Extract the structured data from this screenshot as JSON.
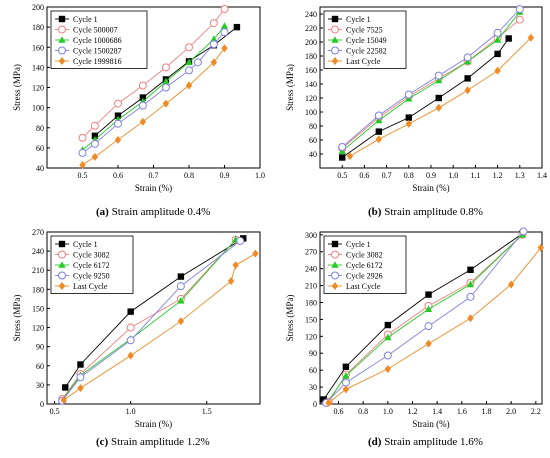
{
  "chart_data": [
    {
      "type": "line",
      "panel_label": "(a)",
      "caption": "Strain amplitude 0.4%",
      "xlabel": "Strain (%)",
      "ylabel": "Stress (MPa)",
      "xlim": [
        0.4,
        1.0
      ],
      "ylim": [
        40,
        200
      ],
      "xticks": [
        "0.5",
        "0.6",
        "0.7",
        "0.8",
        "0.9",
        "1.0"
      ],
      "yticks": [
        "40",
        "60",
        "80",
        "100",
        "120",
        "140",
        "160",
        "180",
        "200"
      ],
      "legend_position": "top-left",
      "series": [
        {
          "name": "Cycle 1",
          "color": "#000000",
          "marker": "square-filled",
          "x": [
            0.535,
            0.6,
            0.67,
            0.735,
            0.8,
            0.87,
            0.935
          ],
          "y": [
            72,
            92,
            110,
            128,
            146,
            162,
            180
          ]
        },
        {
          "name": "Cycle 500007",
          "color": "#f08080",
          "marker": "circle-open",
          "x": [
            0.5,
            0.535,
            0.6,
            0.67,
            0.735,
            0.8,
            0.87,
            0.9
          ],
          "y": [
            70,
            82,
            104,
            122,
            140,
            160,
            184,
            198
          ]
        },
        {
          "name": "Cycle 1000686",
          "color": "#22cc22",
          "marker": "triangle-filled",
          "x": [
            0.5,
            0.535,
            0.6,
            0.67,
            0.735,
            0.8,
            0.87,
            0.9
          ],
          "y": [
            58,
            68,
            88,
            106,
            126,
            145,
            168,
            181
          ]
        },
        {
          "name": "Cycle 1500287",
          "color": "#8080e0",
          "marker": "circle-open",
          "x": [
            0.5,
            0.535,
            0.6,
            0.67,
            0.735,
            0.8,
            0.825,
            0.87,
            0.9
          ],
          "y": [
            55,
            64,
            84,
            102,
            120,
            137,
            145,
            163,
            175
          ]
        },
        {
          "name": "Cycle 1999816",
          "color": "#f08a24",
          "marker": "diamond-filled",
          "x": [
            0.5,
            0.535,
            0.6,
            0.67,
            0.735,
            0.8,
            0.87,
            0.9
          ],
          "y": [
            43,
            51,
            68,
            86,
            104,
            122,
            145,
            159
          ]
        }
      ]
    },
    {
      "type": "line",
      "panel_label": "(b)",
      "caption": "Strain amplitude 0.8%",
      "xlabel": "Strain (%)",
      "ylabel": "Stress (MPa)",
      "xlim": [
        0.4,
        1.4
      ],
      "ylim": [
        20,
        250
      ],
      "xticks": [
        "0.5",
        "0.6",
        "0.7",
        "0.8",
        "0.9",
        "1.0",
        "1.1",
        "1.2",
        "1.3",
        "1.4"
      ],
      "yticks": [
        "40",
        "60",
        "80",
        "100",
        "120",
        "140",
        "160",
        "180",
        "200",
        "220",
        "240"
      ],
      "legend_position": "top-left",
      "series": [
        {
          "name": "Cycle 1",
          "color": "#000000",
          "marker": "square-filled",
          "x": [
            0.5,
            0.665,
            0.8,
            0.935,
            1.065,
            1.2,
            1.25
          ],
          "y": [
            35,
            72,
            92,
            120,
            148,
            183,
            205
          ]
        },
        {
          "name": "Cycle 7525",
          "color": "#f08080",
          "marker": "circle-open",
          "x": [
            0.5,
            0.665,
            0.8,
            0.935,
            1.065,
            1.2,
            1.3
          ],
          "y": [
            48,
            92,
            122,
            148,
            172,
            206,
            232
          ]
        },
        {
          "name": "Cycle 15049",
          "color": "#22cc22",
          "marker": "triangle-filled",
          "x": [
            0.5,
            0.665,
            0.8,
            0.935,
            1.065,
            1.2,
            1.3
          ],
          "y": [
            44,
            88,
            119,
            145,
            172,
            203,
            243
          ]
        },
        {
          "name": "Cycle 22582",
          "color": "#8080e0",
          "marker": "circle-open",
          "x": [
            0.5,
            0.665,
            0.8,
            0.935,
            1.065,
            1.2,
            1.3
          ],
          "y": [
            50,
            95,
            125,
            152,
            178,
            213,
            247
          ]
        },
        {
          "name": "Last Cycle",
          "color": "#f08a24",
          "marker": "diamond-filled",
          "x": [
            0.535,
            0.665,
            0.8,
            0.935,
            1.065,
            1.2,
            1.35
          ],
          "y": [
            37,
            61,
            83,
            106,
            131,
            159,
            206
          ]
        }
      ]
    },
    {
      "type": "line",
      "panel_label": "(c)",
      "caption": "Strain amplitude 1.2%",
      "xlabel": "Strain (%)",
      "ylabel": "Stress (MPa)",
      "xlim": [
        0.45,
        1.85
      ],
      "ylim": [
        0,
        270
      ],
      "xticks": [
        "0.5",
        "1.0",
        "1.5"
      ],
      "yticks": [
        "0",
        "30",
        "60",
        "90",
        "120",
        "150",
        "180",
        "210",
        "240",
        "270"
      ],
      "legend_position": "top-left",
      "series": [
        {
          "name": "Cycle 1",
          "color": "#000000",
          "marker": "square-filled",
          "x": [
            0.57,
            0.67,
            1.0,
            1.33,
            1.74
          ],
          "y": [
            26,
            62,
            145,
            200,
            260
          ]
        },
        {
          "name": "Cycle 3082",
          "color": "#f08080",
          "marker": "circle-open",
          "x": [
            0.55,
            0.67,
            1.0,
            1.33,
            1.69
          ],
          "y": [
            8,
            47,
            120,
            165,
            258
          ]
        },
        {
          "name": "Cycle 6172",
          "color": "#22cc22",
          "marker": "triangle-filled",
          "x": [
            0.55,
            0.67,
            1.0,
            1.33,
            1.69
          ],
          "y": [
            6,
            45,
            102,
            162,
            258
          ]
        },
        {
          "name": "Cycle 9250",
          "color": "#8080e0",
          "marker": "circle-open",
          "x": [
            0.55,
            0.67,
            1.0,
            1.33,
            1.72
          ],
          "y": [
            5,
            42,
            100,
            185,
            256
          ]
        },
        {
          "name": "Last Cycle",
          "color": "#f08a24",
          "marker": "diamond-filled",
          "x": [
            0.56,
            0.67,
            1.0,
            1.33,
            1.66,
            1.69,
            1.82
          ],
          "y": [
            6,
            25,
            76,
            130,
            193,
            218,
            236
          ]
        }
      ]
    },
    {
      "type": "line",
      "panel_label": "(d)",
      "caption": "Strain amplitude 1.6%",
      "xlabel": "Strain (%)",
      "ylabel": "Stress (MPa)",
      "xlim": [
        0.45,
        2.25
      ],
      "ylim": [
        0,
        305
      ],
      "xticks": [
        "0.6",
        "0.8",
        "1.0",
        "1.2",
        "1.4",
        "1.6",
        "1.8",
        "2.0",
        "2.2"
      ],
      "yticks": [
        "0",
        "30",
        "60",
        "90",
        "120",
        "150",
        "180",
        "210",
        "240",
        "270",
        "300"
      ],
      "legend_position": "top-left",
      "series": [
        {
          "name": "Cycle 1",
          "color": "#000000",
          "marker": "square-filled",
          "x": [
            0.48,
            0.66,
            1.0,
            1.33,
            1.67,
            2.09
          ],
          "y": [
            8,
            66,
            140,
            194,
            238,
            302
          ]
        },
        {
          "name": "Cycle 3082",
          "color": "#f08080",
          "marker": "circle-open",
          "x": [
            0.52,
            0.66,
            1.0,
            1.33,
            1.67,
            2.09
          ],
          "y": [
            4,
            52,
            123,
            174,
            215,
            300
          ]
        },
        {
          "name": "Cycle 6172",
          "color": "#22cc22",
          "marker": "triangle-filled",
          "x": [
            0.51,
            0.66,
            1.0,
            1.33,
            1.67,
            2.09
          ],
          "y": [
            3,
            50,
            118,
            168,
            212,
            300
          ]
        },
        {
          "name": "Cycle 2926",
          "color": "#8080e0",
          "marker": "circle-open",
          "x": [
            0.5,
            0.66,
            1.0,
            1.33,
            1.67,
            2.1
          ],
          "y": [
            2,
            38,
            86,
            138,
            190,
            306
          ]
        },
        {
          "name": "Last Cycle",
          "color": "#f08a24",
          "marker": "diamond-filled",
          "x": [
            0.52,
            0.66,
            1.0,
            1.33,
            1.67,
            2.0,
            2.24
          ],
          "y": [
            2,
            26,
            62,
            107,
            152,
            212,
            277
          ]
        }
      ]
    }
  ]
}
